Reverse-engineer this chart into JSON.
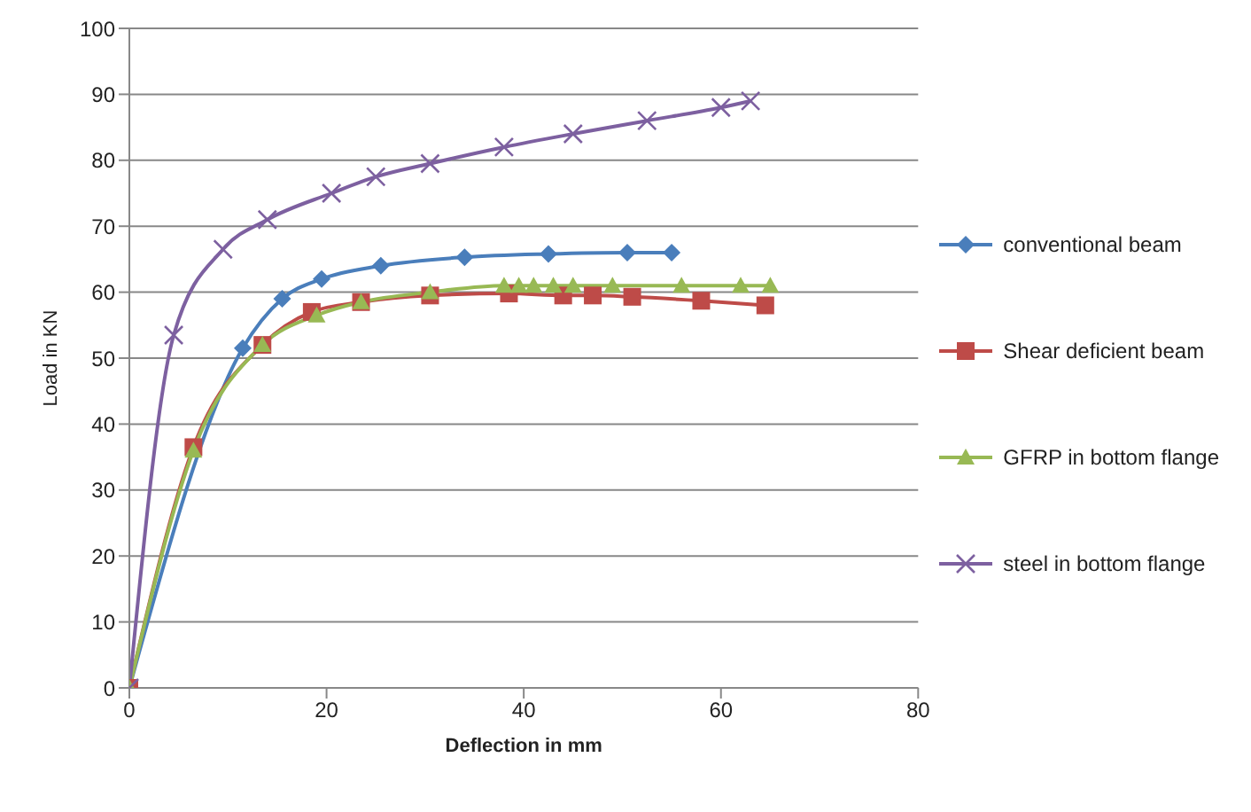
{
  "chart_data": {
    "type": "line",
    "xlabel": "Deflection in mm",
    "ylabel": "Load in KN",
    "xlim": [
      0,
      80
    ],
    "xticks": [
      0,
      20,
      40,
      60,
      80
    ],
    "ylim": [
      0,
      100
    ],
    "yticks": [
      0,
      10,
      20,
      30,
      40,
      50,
      60,
      70,
      80,
      90,
      100
    ],
    "grid": "y",
    "legend": "right",
    "series": [
      {
        "name": "conventional beam",
        "color": "#4a7ebb",
        "marker": "diamond",
        "x": [
          0,
          11.5,
          15.5,
          19.5,
          25.5,
          34,
          42.5,
          50.5,
          55
        ],
        "values": [
          0,
          51.5,
          59,
          62,
          64,
          65.3,
          65.8,
          66,
          66
        ]
      },
      {
        "name": "Shear deficient beam",
        "color": "#be4b48",
        "marker": "square",
        "x": [
          0,
          6.5,
          13.5,
          18.5,
          23.5,
          30.5,
          38.5,
          44,
          47,
          51,
          58,
          64.5
        ],
        "values": [
          0,
          36.5,
          52,
          57,
          58.5,
          59.5,
          59.8,
          59.5,
          59.5,
          59.3,
          58.7,
          58
        ]
      },
      {
        "name": "GFRP in bottom flange",
        "color": "#98b954",
        "marker": "triangle",
        "x": [
          0,
          6.5,
          13.5,
          19,
          23.5,
          30.5,
          38,
          39.5,
          41,
          43,
          45,
          49,
          56,
          62,
          65
        ],
        "values": [
          0,
          36,
          52,
          56.5,
          58.5,
          60,
          61,
          61,
          61,
          61,
          61,
          61,
          61,
          61,
          61
        ]
      },
      {
        "name": "steel in bottom flange",
        "color": "#7d60a0",
        "marker": "cross",
        "x": [
          0,
          4.5,
          9.5,
          14,
          20.5,
          25,
          30.5,
          38,
          45,
          52.5,
          60,
          63
        ],
        "values": [
          0,
          53.5,
          66.5,
          71,
          75,
          77.5,
          79.5,
          82,
          84,
          86,
          88,
          89
        ]
      }
    ]
  }
}
